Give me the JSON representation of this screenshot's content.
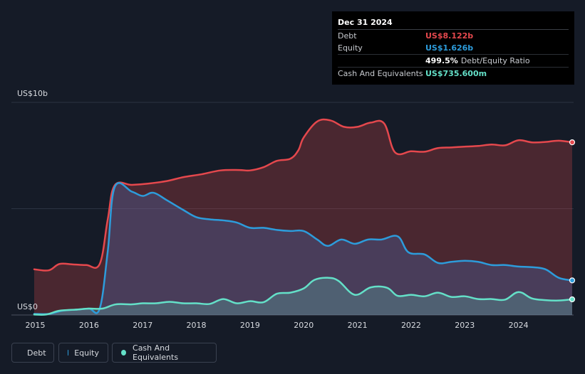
{
  "tooltip": {
    "date": "Dec 31 2024",
    "debt_label": "Debt",
    "debt_value": "US$8.122b",
    "equity_label": "Equity",
    "equity_value": "US$1.626b",
    "ratio_value": "499.5%",
    "ratio_label": "Debt/Equity Ratio",
    "cash_label": "Cash And Equivalents",
    "cash_value": "US$735.600m"
  },
  "colors": {
    "background": "#151b27",
    "debt": "#e5484d",
    "equity": "#2d9cdb",
    "cash": "#64e0c8"
  },
  "legend": {
    "debt": "Debt",
    "equity": "Equity",
    "cash": "Cash And Equivalents"
  },
  "chart_data": {
    "type": "area",
    "title": "",
    "xlabel": "",
    "ylabel": "",
    "y_max_label": "US$10b",
    "y_min_label": "US$0",
    "ylim": [
      0,
      10
    ],
    "xlim": [
      2014.98,
      2025.0
    ],
    "x_ticks": [
      2015,
      2016,
      2017,
      2018,
      2019,
      2020,
      2021,
      2022,
      2023,
      2024
    ],
    "x_tick_labels": [
      "2015",
      "2016",
      "2017",
      "2018",
      "2019",
      "2020",
      "2021",
      "2022",
      "2023",
      "2024"
    ],
    "series": [
      {
        "name": "Debt",
        "x": [
          2014.98,
          2015.25,
          2015.45,
          2015.7,
          2015.95,
          2016.2,
          2016.35,
          2016.48,
          2016.8,
          2017.1,
          2017.45,
          2017.75,
          2018.1,
          2018.45,
          2018.8,
          2019.0,
          2019.25,
          2019.5,
          2019.75,
          2019.9,
          2020.0,
          2020.25,
          2020.5,
          2020.75,
          2021.0,
          2021.25,
          2021.5,
          2021.7,
          2022.0,
          2022.25,
          2022.5,
          2022.75,
          2023.0,
          2023.25,
          2023.5,
          2023.75,
          2024.0,
          2024.25,
          2024.5,
          2024.75,
          2025.0
        ],
        "values": [
          2.15,
          2.1,
          2.4,
          2.38,
          2.35,
          2.4,
          4.5,
          6.1,
          6.12,
          6.18,
          6.3,
          6.48,
          6.62,
          6.8,
          6.82,
          6.8,
          6.95,
          7.25,
          7.35,
          7.75,
          8.35,
          9.1,
          9.15,
          8.85,
          8.85,
          9.05,
          9.0,
          7.65,
          7.7,
          7.68,
          7.85,
          7.88,
          7.92,
          7.95,
          8.02,
          7.98,
          8.22,
          8.12,
          8.14,
          8.2,
          8.122
        ]
      },
      {
        "name": "Equity",
        "x": [
          2014.98,
          2015.25,
          2015.5,
          2015.75,
          2016.0,
          2016.2,
          2016.35,
          2016.48,
          2016.8,
          2017.0,
          2017.2,
          2017.45,
          2017.75,
          2018.0,
          2018.25,
          2018.5,
          2018.75,
          2019.0,
          2019.25,
          2019.5,
          2019.75,
          2020.0,
          2020.25,
          2020.45,
          2020.7,
          2020.95,
          2021.2,
          2021.45,
          2021.75,
          2021.95,
          2022.25,
          2022.5,
          2022.75,
          2023.0,
          2023.25,
          2023.5,
          2023.75,
          2024.0,
          2024.25,
          2024.5,
          2024.75,
          2025.0
        ],
        "values": [
          0.05,
          0.05,
          0.2,
          0.25,
          0.3,
          0.3,
          3.0,
          6.02,
          5.8,
          5.6,
          5.75,
          5.4,
          4.95,
          4.6,
          4.5,
          4.45,
          4.35,
          4.1,
          4.1,
          4.0,
          3.95,
          3.95,
          3.55,
          3.25,
          3.55,
          3.35,
          3.55,
          3.55,
          3.7,
          2.95,
          2.85,
          2.45,
          2.5,
          2.55,
          2.5,
          2.35,
          2.35,
          2.28,
          2.25,
          2.15,
          1.75,
          1.626
        ]
      },
      {
        "name": "Cash And Equivalents",
        "x": [
          2014.98,
          2015.2,
          2015.45,
          2015.75,
          2016.0,
          2016.25,
          2016.5,
          2016.8,
          2017.0,
          2017.25,
          2017.5,
          2017.75,
          2018.0,
          2018.25,
          2018.5,
          2018.75,
          2019.0,
          2019.25,
          2019.5,
          2019.75,
          2020.0,
          2020.2,
          2020.45,
          2020.65,
          2020.95,
          2021.25,
          2021.55,
          2021.75,
          2022.0,
          2022.25,
          2022.5,
          2022.75,
          2023.0,
          2023.25,
          2023.5,
          2023.75,
          2024.0,
          2024.25,
          2024.5,
          2024.75,
          2025.0
        ],
        "values": [
          0.02,
          0.02,
          0.2,
          0.25,
          0.3,
          0.3,
          0.5,
          0.5,
          0.55,
          0.55,
          0.62,
          0.55,
          0.55,
          0.52,
          0.75,
          0.55,
          0.65,
          0.6,
          1.0,
          1.05,
          1.25,
          1.65,
          1.75,
          1.6,
          0.95,
          1.3,
          1.28,
          0.9,
          0.95,
          0.88,
          1.05,
          0.85,
          0.88,
          0.75,
          0.75,
          0.72,
          1.08,
          0.78,
          0.7,
          0.68,
          0.7356
        ]
      }
    ],
    "grid": true,
    "legend_position": "bottom-left"
  }
}
